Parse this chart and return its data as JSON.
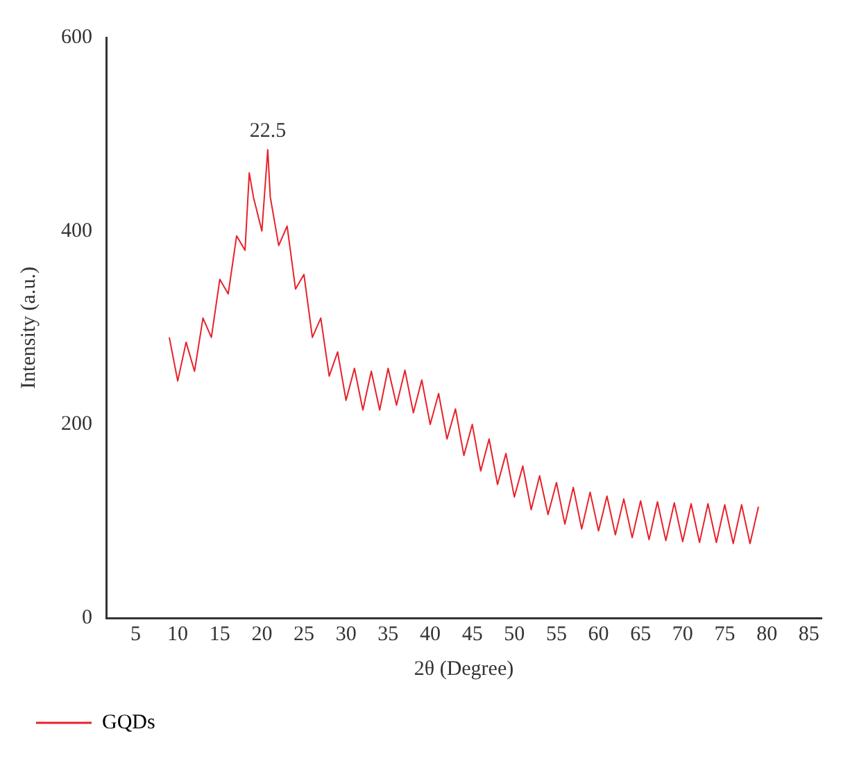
{
  "chart_data": {
    "type": "line",
    "xlabel": "2θ (Degree)",
    "ylabel": "Intensity (a.u.)",
    "annotations": [
      "22.5"
    ],
    "x": [
      9,
      10,
      11,
      12,
      13,
      14,
      15,
      16,
      17,
      18,
      18.5,
      19,
      20,
      20.7,
      21,
      22,
      23,
      24,
      25,
      26,
      27,
      28,
      29,
      30,
      31,
      32,
      33,
      34,
      35,
      36,
      37,
      38,
      39,
      40,
      41,
      42,
      43,
      44,
      45,
      46,
      47,
      48,
      49,
      50,
      51,
      52,
      53,
      54,
      55,
      56,
      57,
      58,
      59,
      60,
      61,
      62,
      63,
      64,
      65,
      66,
      67,
      68,
      69,
      70,
      71,
      72,
      73,
      74,
      75,
      76,
      77,
      78,
      79
    ],
    "series": [
      {
        "name": "GQDs",
        "color": "#e8212a",
        "values": [
          290,
          245,
          285,
          255,
          310,
          290,
          350,
          335,
          395,
          380,
          460,
          435,
          400,
          484,
          435,
          385,
          405,
          340,
          355,
          290,
          310,
          250,
          275,
          225,
          258,
          215,
          255,
          215,
          258,
          220,
          256,
          212,
          246,
          200,
          232,
          185,
          216,
          168,
          200,
          152,
          185,
          138,
          170,
          125,
          157,
          112,
          147,
          107,
          140,
          97,
          135,
          92,
          130,
          90,
          126,
          86,
          123,
          83,
          121,
          81,
          120,
          80,
          119,
          79,
          118,
          78,
          118,
          78,
          117,
          77,
          117,
          77,
          115
        ]
      }
    ],
    "xlim": [
      1.5,
      86.5
    ],
    "xticks": [
      5,
      10,
      15,
      20,
      25,
      30,
      35,
      40,
      45,
      50,
      55,
      60,
      65,
      70,
      75,
      80,
      85
    ],
    "ylim": [
      0,
      600
    ],
    "yticks": [
      0,
      200,
      400,
      600
    ],
    "grid": false,
    "legend": "bottom left",
    "marker": "none",
    "line_style": "solid"
  }
}
